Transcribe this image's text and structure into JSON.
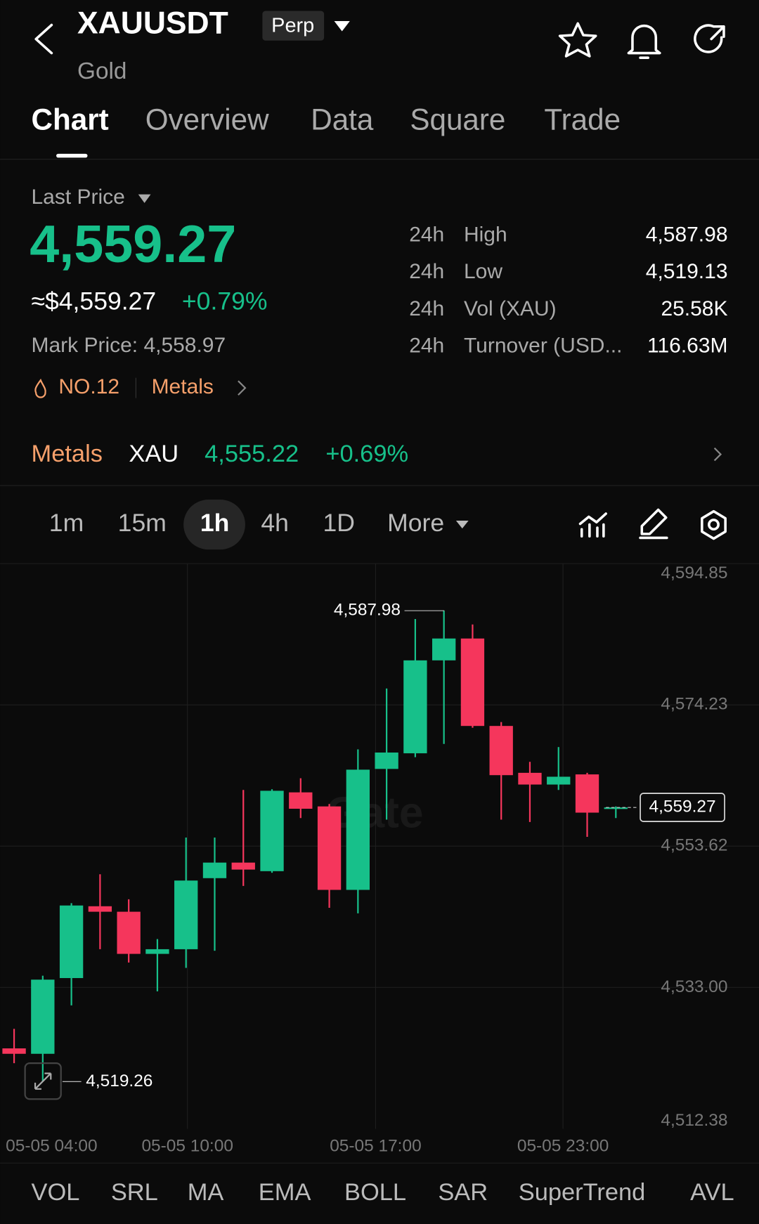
{
  "header": {
    "symbol": "XAUUSDT",
    "badge": "Perp",
    "name": "Gold"
  },
  "tabs": [
    "Chart",
    "Overview",
    "Data",
    "Square",
    "Trade"
  ],
  "price": {
    "label": "Last Price",
    "last": "4,559.27",
    "usd": "≈$4,559.27",
    "change": "+0.79%",
    "mark": "Mark Price: 4,558.97",
    "rank": "NO.12",
    "sector": "Metals"
  },
  "stats": [
    {
      "period": "24h",
      "label": "High",
      "value": "4,587.98"
    },
    {
      "period": "24h",
      "label": "Low",
      "value": "4,519.13"
    },
    {
      "period": "24h",
      "label": "Vol (XAU)",
      "value": "25.58K"
    },
    {
      "period": "24h",
      "label": "Turnover (USD...",
      "value": "116.63M"
    }
  ],
  "index_bar": {
    "sector": "Metals",
    "asset": "XAU",
    "price": "4,555.22",
    "change": "+0.69%"
  },
  "intervals": [
    "1m",
    "15m",
    "1h",
    "4h",
    "1D",
    "More"
  ],
  "chart_data": {
    "type": "candlestick",
    "watermark": "Gate",
    "open": [
      4524.11,
      4523.32,
      4534.37,
      4544.85,
      4544.05,
      4537.9,
      4538.58,
      4548.95,
      4551.22,
      4549.97,
      4561.47,
      4559.42,
      4547.24,
      4564.89,
      4567.17,
      4580.73,
      4583.92,
      4571.16,
      4564.32,
      4562.61,
      4564.09,
      4559.08
    ],
    "close": [
      4523.32,
      4534.14,
      4544.96,
      4544.05,
      4537.9,
      4538.58,
      4548.6,
      4551.22,
      4550.2,
      4561.7,
      4559.08,
      4547.24,
      4564.78,
      4567.28,
      4580.73,
      4583.92,
      4571.16,
      4563.98,
      4562.61,
      4563.75,
      4558.51,
      4559.27
    ],
    "high": [
      4526.96,
      4534.71,
      4545.3,
      4549.52,
      4545.87,
      4540.06,
      4554.87,
      4554.87,
      4561.82,
      4561.93,
      4563.53,
      4559.77,
      4567.74,
      4576.62,
      4586.76,
      4587.98,
      4585.97,
      4571.73,
      4565.92,
      4568.08,
      4564.32,
      4559.42
    ],
    "low": [
      4521.95,
      4519.26,
      4530.38,
      4538.58,
      4536.64,
      4532.43,
      4535.85,
      4538.35,
      4547.81,
      4549.74,
      4557.72,
      4544.62,
      4543.82,
      4557.49,
      4566.6,
      4568.54,
      4570.9,
      4557.49,
      4557.15,
      4561.82,
      4554.98,
      4557.72
    ],
    "up_color": "#17c08a",
    "down_color": "#f5365c",
    "ylim": [
      4512.38,
      4594.85
    ],
    "yticks": [
      {
        "value": 4594.85,
        "label": "4,594.85"
      },
      {
        "value": 4574.23,
        "label": "4,574.23"
      },
      {
        "value": 4553.62,
        "label": "4,553.62"
      },
      {
        "value": 4533.0,
        "label": "4,533.00"
      },
      {
        "value": 4512.38,
        "label": "4,512.38"
      }
    ],
    "xticks": [
      "05-05 04:00",
      "05-05 10:00",
      "05-05 17:00",
      "05-05 23:00"
    ],
    "high_label": {
      "value": 4587.98,
      "label": "4,587.98"
    },
    "low_label": {
      "value": 4519.26,
      "label": "4,519.26"
    },
    "last_label": {
      "value": 4559.27,
      "label": "4,559.27"
    },
    "grid": true
  },
  "indicators": [
    "VOL",
    "SRL",
    "MA",
    "EMA",
    "BOLL",
    "SAR",
    "SuperTrend",
    "AVL"
  ]
}
